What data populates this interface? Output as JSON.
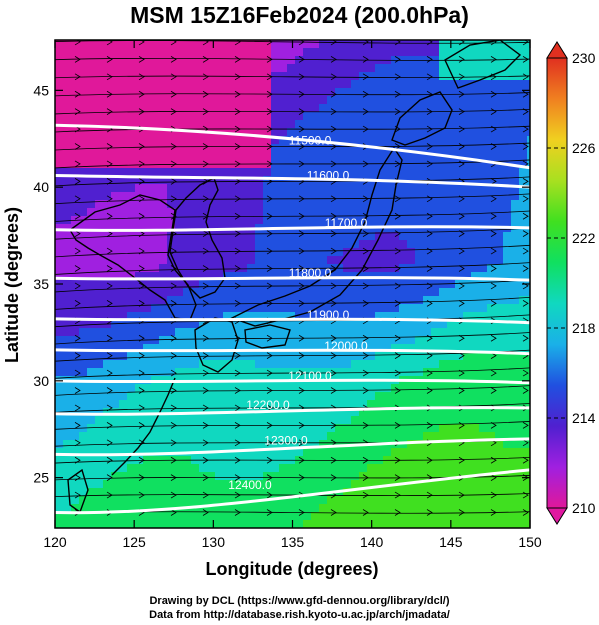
{
  "title": "MSM 15Z16Feb2024 (200.0hPa)",
  "xlabel": "Longitude (degrees)",
  "ylabel": "Latitude  (degrees)",
  "credit_line1": "Drawing by DCL (https://www.gfd-dennou.org/library/dcl/)",
  "credit_line2": "Data from http://database.rish.kyoto-u.ac.jp/arch/jmadata/",
  "x_ticks": [
    "120",
    "125",
    "130",
    "135",
    "140",
    "145",
    "150"
  ],
  "y_ticks": [
    "25",
    "30",
    "35",
    "40",
    "45"
  ],
  "colorbar": {
    "ticks": [
      "230",
      "226",
      "222",
      "218",
      "214",
      "210"
    ],
    "palette": [
      "#e0189a",
      "#a020e0",
      "#5020d0",
      "#2050e0",
      "#1ab0e8",
      "#10d8c0",
      "#10e060",
      "#40e020",
      "#a8e020",
      "#f0d020",
      "#f08020",
      "#e03020"
    ]
  },
  "contour_labels": [
    "11500.0",
    "11600.0",
    "11700.0",
    "11800.0",
    "11900.0",
    "12000.0",
    "12100.0",
    "12200.0",
    "12300.0",
    "12400.0"
  ],
  "chart_data": {
    "type": "heatmap",
    "title": "MSM 15Z16Feb2024 (200.0hPa)",
    "xlabel": "Longitude (degrees)",
    "ylabel": "Latitude  (degrees)",
    "xlim": [
      120,
      150
    ],
    "ylim": [
      22.4,
      47.6
    ],
    "colorbar_range": [
      210,
      230
    ],
    "contour_field": "geopotential height",
    "contours": [
      {
        "level": 11500.0,
        "lat_west": 43.2,
        "lat_east": 41.0
      },
      {
        "level": 11600.0,
        "lat_west": 40.6,
        "lat_east": 40.0
      },
      {
        "level": 11700.0,
        "lat_west": 37.8,
        "lat_east": 37.9
      },
      {
        "level": 11800.0,
        "lat_west": 35.3,
        "lat_east": 35.2
      },
      {
        "level": 11900.0,
        "lat_west": 33.2,
        "lat_east": 33.0
      },
      {
        "level": 12000.0,
        "lat_west": 31.6,
        "lat_east": 31.4
      },
      {
        "level": 12100.0,
        "lat_west": 30.0,
        "lat_east": 29.9
      },
      {
        "level": 12200.0,
        "lat_west": 28.3,
        "lat_east": 28.6
      },
      {
        "level": 12300.0,
        "lat_west": 26.2,
        "lat_east": 27.0
      },
      {
        "level": 12400.0,
        "lat_west": 23.2,
        "lat_east": 25.4
      }
    ]
  }
}
